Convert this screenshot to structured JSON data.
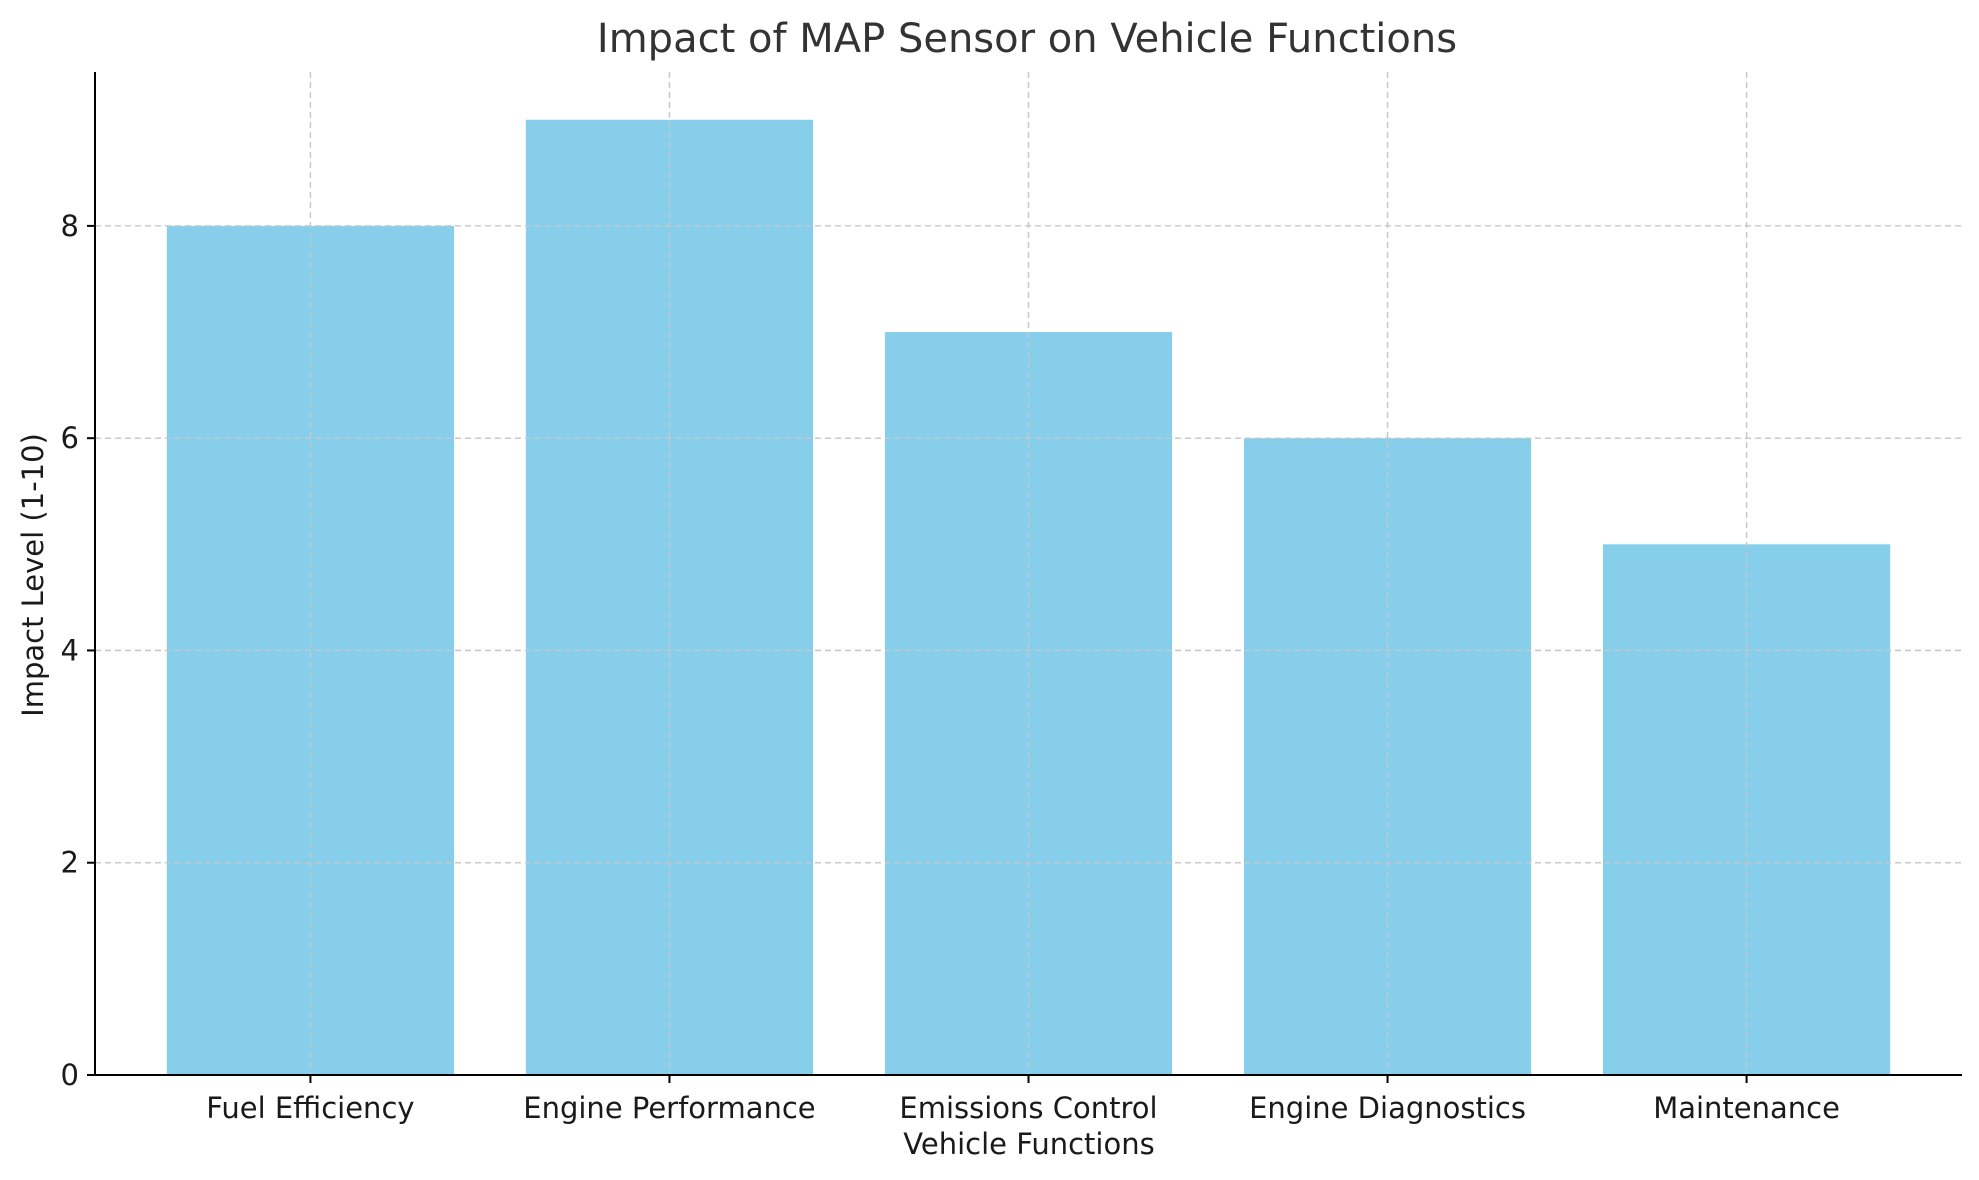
{
  "chart_data": {
    "type": "bar",
    "title": "Impact of MAP Sensor on Vehicle Functions",
    "xlabel": "Vehicle Functions",
    "ylabel": "Impact Level (1-10)",
    "categories": [
      "Fuel Efficiency",
      "Engine Performance",
      "Emissions Control",
      "Engine Diagnostics",
      "Maintenance"
    ],
    "values": [
      8,
      9,
      7,
      6,
      5
    ],
    "ylim": [
      0,
      9.45
    ],
    "yticks": [
      "0",
      "2",
      "4",
      "6",
      "8"
    ],
    "grid": true,
    "colors": {
      "bar": "#87CEEB",
      "grid": "#c8c8c8",
      "axis": "#000000"
    }
  }
}
